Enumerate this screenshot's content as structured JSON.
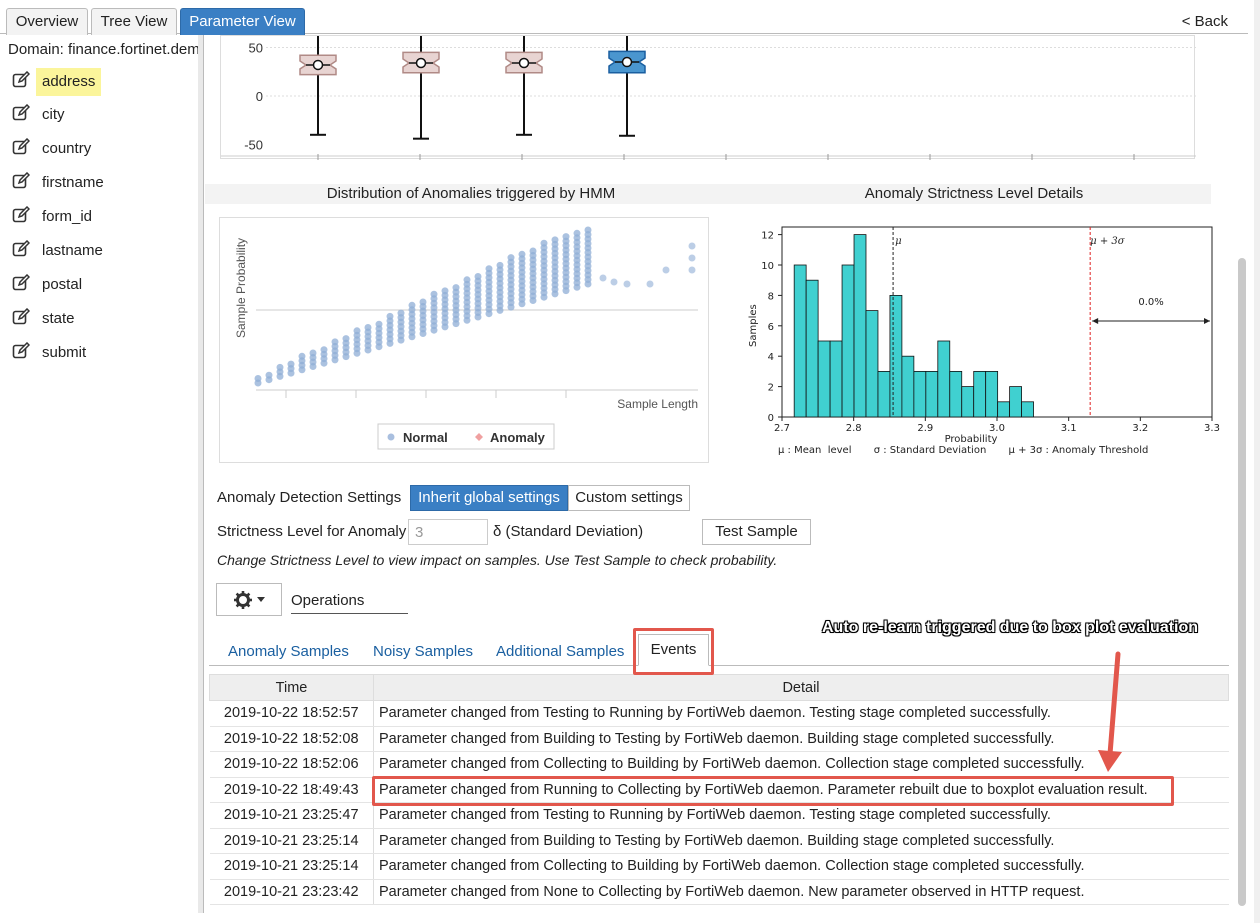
{
  "tabs": [
    {
      "label": "Overview",
      "active": false
    },
    {
      "label": "Tree View",
      "active": false
    },
    {
      "label": "Parameter View",
      "active": true
    }
  ],
  "back_label": "< Back",
  "sidebar": {
    "domain_label": "Domain: finance.fortinet.dem",
    "items": [
      {
        "label": "address",
        "highlighted": true,
        "icon": "edit-icon"
      },
      {
        "label": "city",
        "icon": "edit-icon"
      },
      {
        "label": "country",
        "icon": "edit-icon"
      },
      {
        "label": "firstname",
        "icon": "edit-icon"
      },
      {
        "label": "form_id",
        "icon": "edit-icon"
      },
      {
        "label": "lastname",
        "icon": "edit-icon"
      },
      {
        "label": "postal",
        "icon": "edit-icon"
      },
      {
        "label": "state",
        "icon": "edit-icon"
      },
      {
        "label": "submit",
        "icon": "edit-icon"
      }
    ]
  },
  "boxplot": {
    "ytick_labels": [
      "50",
      "0",
      "-50"
    ]
  },
  "hmm_panel": {
    "title": "Distribution of Anomalies triggered by HMM",
    "ylabel": "Sample Probability",
    "xlabel": "Sample Length",
    "legend": [
      {
        "label": "Normal",
        "color": "#a9bfdf"
      },
      {
        "label": "Anomaly",
        "color": "#f0a0a0"
      }
    ]
  },
  "strictness_panel": {
    "title": "Anomaly Strictness Level Details",
    "mu_label": "μ",
    "threshold_label": "μ + 3σ",
    "pct_label": "0.0%",
    "ylabel": "Samples",
    "xlabel": "Probability",
    "legend_text": "μ : Mean  level       σ : Standard Deviation       μ + 3σ : Anomaly Threshold"
  },
  "chart_data": [
    {
      "type": "box",
      "ytick_labels": [
        "50",
        "0",
        "-50"
      ],
      "boxes": [
        {
          "median": 32,
          "q1": 22,
          "q3": 42,
          "whisker_low": -40,
          "whisker_high": 62,
          "color": "#e8d4d2"
        },
        {
          "median": 34,
          "q1": 24,
          "q3": 45,
          "whisker_low": -44,
          "whisker_high": 62,
          "color": "#e8d4d2"
        },
        {
          "median": 34,
          "q1": 24,
          "q3": 45,
          "whisker_low": -40,
          "whisker_high": 62,
          "color": "#e8d4d2"
        },
        {
          "median": 35,
          "q1": 24,
          "q3": 46,
          "whisker_low": -41,
          "whisker_high": 62,
          "color": "#4a96cf"
        }
      ]
    },
    {
      "type": "scatter",
      "title": "Distribution of Anomalies triggered by HMM",
      "xlabel": "Sample Length",
      "ylabel": "Sample Probability",
      "series": [
        {
          "name": "Normal",
          "color": "#8fadd6"
        },
        {
          "name": "Anomaly",
          "color": "#f0a0a0"
        }
      ]
    },
    {
      "type": "bar",
      "title": "Anomaly Strictness Level Details",
      "xlabel": "Probability",
      "ylabel": "Samples",
      "xlim": [
        2.7,
        3.3
      ],
      "ylim": [
        0,
        12.5
      ],
      "xticks": [
        "2.7",
        "2.8",
        "2.9",
        "3.0",
        "3.1",
        "3.2",
        "3.3"
      ],
      "yticks": [
        "0",
        "2",
        "4",
        "6",
        "8",
        "10",
        "12"
      ],
      "bin_width": 0.0167,
      "bin_start": 2.717,
      "values": [
        10,
        9,
        5,
        5,
        10,
        12,
        7,
        3,
        8,
        4,
        3,
        3,
        5,
        3,
        2,
        3,
        3,
        1,
        2,
        1
      ],
      "mean": 2.855,
      "threshold": 3.13
    }
  ],
  "settings": {
    "label": "Anomaly Detection Settings",
    "inherit_label": "Inherit global settings",
    "custom_label": "Custom settings",
    "strictness_label": "Strictness Level for Anomaly",
    "strictness_value": "3",
    "unit_label": "δ (Standard Deviation)",
    "test_sample_label": "Test Sample",
    "note": "Change Strictness Level to view impact on samples. Use Test Sample to check probability."
  },
  "operations": {
    "label": "Operations"
  },
  "subtabs": [
    {
      "label": "Anomaly Samples",
      "active": false
    },
    {
      "label": "Noisy Samples",
      "active": false
    },
    {
      "label": "Additional Samples",
      "active": false
    },
    {
      "label": "Events",
      "active": true
    }
  ],
  "events_table": {
    "columns": [
      "Time",
      "Detail"
    ],
    "rows": [
      {
        "time": "2019-10-22 18:52:57",
        "detail": "Parameter changed from Testing to Running by FortiWeb daemon. Testing stage completed successfully."
      },
      {
        "time": "2019-10-22 18:52:08",
        "detail": "Parameter changed from Building to Testing by FortiWeb daemon. Building stage completed successfully."
      },
      {
        "time": "2019-10-22 18:52:06",
        "detail": "Parameter changed from Collecting to Building by FortiWeb daemon. Collection stage completed successfully."
      },
      {
        "time": "2019-10-22 18:49:43",
        "detail": "Parameter changed from Running to Collecting by FortiWeb daemon. Parameter rebuilt due to boxplot evaluation result."
      },
      {
        "time": "2019-10-21 23:25:47",
        "detail": "Parameter changed from Testing to Running by FortiWeb daemon. Testing stage completed successfully."
      },
      {
        "time": "2019-10-21 23:25:14",
        "detail": "Parameter changed from Building to Testing by FortiWeb daemon. Building stage completed successfully."
      },
      {
        "time": "2019-10-21 23:25:14",
        "detail": "Parameter changed from Collecting to Building by FortiWeb daemon. Collection stage completed successfully."
      },
      {
        "time": "2019-10-21 23:23:42",
        "detail": "Parameter changed from None to Collecting by FortiWeb daemon. New parameter observed in HTTP request."
      }
    ]
  },
  "annotation": {
    "callout": "Auto re-learn triggered due to box plot evaluation"
  },
  "colors": {
    "accent": "#3a7fc4",
    "highlight": "#fbf59b",
    "annotation": "#e2574c",
    "hist_bar": "#40d0d0"
  }
}
